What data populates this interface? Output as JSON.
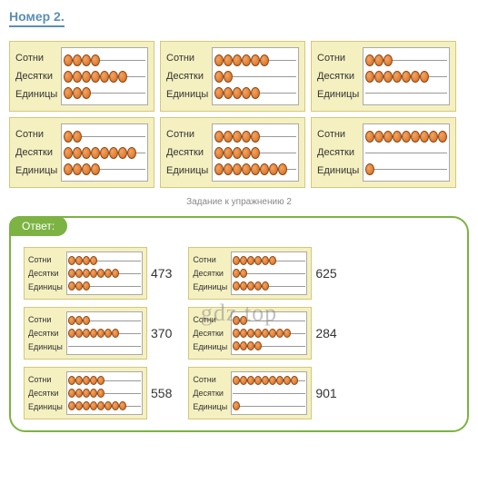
{
  "title": "Номер 2.",
  "caption": "Задание к упражнению 2",
  "answerLabel": "Ответ:",
  "watermark": "gdz.top",
  "rowLabels": {
    "hundreds": "Сотни",
    "tens": "Десятки",
    "units": "Единицы"
  },
  "colors": {
    "cardBg": "#f5f0c0",
    "cardBorder": "#d4c878",
    "beadLight": "#f4a460",
    "beadDark": "#d2691e",
    "beadBorder": "#8b4513",
    "titleColor": "#5b8fb5",
    "answerGreen": "#7cb342"
  },
  "topCards": [
    {
      "hundreds": 4,
      "tens": 7,
      "units": 3
    },
    {
      "hundreds": 6,
      "tens": 2,
      "units": 5
    },
    {
      "hundreds": 3,
      "tens": 7,
      "units": 0
    },
    {
      "hundreds": 2,
      "tens": 8,
      "units": 4
    },
    {
      "hundreds": 5,
      "tens": 5,
      "units": 8
    },
    {
      "hundreds": 9,
      "tens": 0,
      "units": 1
    }
  ],
  "answers": [
    {
      "hundreds": 4,
      "tens": 7,
      "units": 3,
      "value": "473"
    },
    {
      "hundreds": 6,
      "tens": 2,
      "units": 5,
      "value": "625"
    },
    {
      "hundreds": 3,
      "tens": 7,
      "units": 0,
      "value": "370"
    },
    {
      "hundreds": 2,
      "tens": 8,
      "units": 4,
      "value": "284"
    },
    {
      "hundreds": 5,
      "tens": 5,
      "units": 8,
      "value": "558"
    },
    {
      "hundreds": 9,
      "tens": 0,
      "units": 1,
      "value": "901"
    }
  ]
}
